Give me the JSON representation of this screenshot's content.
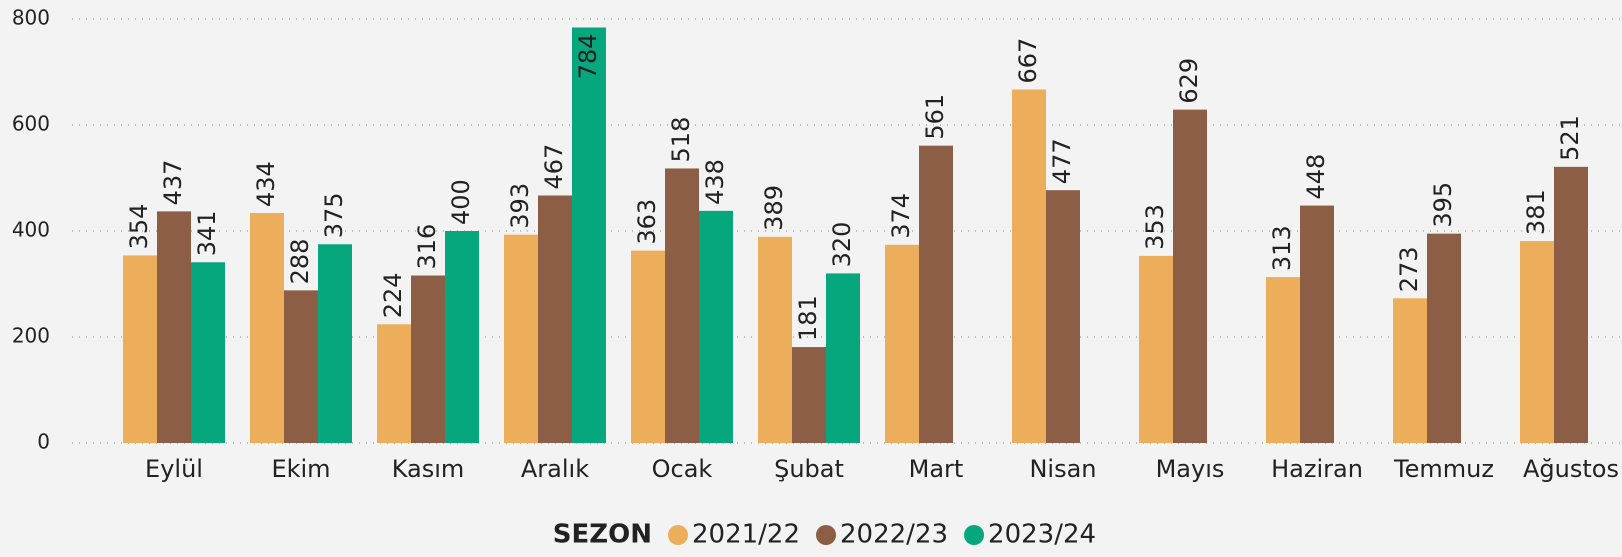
{
  "chart_data": {
    "type": "bar",
    "categories": [
      "Eylül",
      "Ekim",
      "Kasım",
      "Aralık",
      "Ocak",
      "Şubat",
      "Mart",
      "Nisan",
      "Mayıs",
      "Haziran",
      "Temmuz",
      "Ağustos"
    ],
    "series": [
      {
        "name": "2021/22",
        "color": "#edae5b",
        "values": [
          354,
          434,
          224,
          393,
          363,
          389,
          374,
          667,
          353,
          313,
          273,
          381
        ]
      },
      {
        "name": "2022/23",
        "color": "#8b5e45",
        "values": [
          437,
          288,
          316,
          467,
          518,
          181,
          561,
          477,
          629,
          448,
          395,
          521
        ]
      },
      {
        "name": "2023/24",
        "color": "#06a77d",
        "values": [
          341,
          375,
          400,
          784,
          438,
          320,
          null,
          null,
          null,
          null,
          null,
          null
        ]
      }
    ],
    "legend_title": "SEZON",
    "ylim": [
      0,
      800
    ],
    "yticks": [
      0,
      200,
      400,
      600,
      800
    ],
    "grid": true,
    "legend": "bottom"
  }
}
